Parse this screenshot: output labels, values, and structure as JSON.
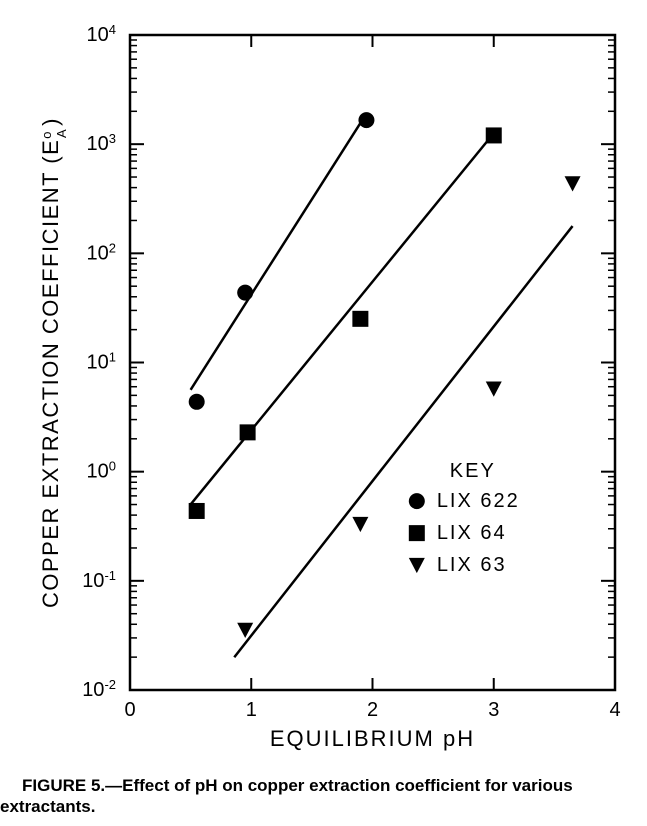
{
  "chart": {
    "type": "scatter-loglinear",
    "xlabel": "EQUILIBRIUM pH",
    "ylabel": "COPPER EXTRACTION COEFFICIENT (E",
    "ylabel_sup": "o",
    "ylabel_sub": "A",
    "ylabel_close": ")",
    "xlim": [
      0,
      4
    ],
    "ylim_exp": [
      -2,
      4
    ],
    "xticks": [
      0,
      1,
      2,
      3,
      4
    ],
    "yticks_exp": [
      -2,
      -1,
      0,
      1,
      2,
      3,
      4
    ],
    "yticklabels": [
      "10⁻²",
      "10⁻¹",
      "10⁰",
      "10¹",
      "10²",
      "10³",
      "10⁴"
    ],
    "axis_color": "#000000",
    "background_color": "#ffffff",
    "line_color": "#000000",
    "marker_color": "#000000",
    "label_fontsize": 22,
    "tick_fontsize": 20,
    "legend_fontsize": 20,
    "line_width": 2.5,
    "marker_size": 8,
    "legend_title": "KEY",
    "series": [
      {
        "name": "LIX 622",
        "marker": "circle",
        "points": [
          {
            "x": 0.55,
            "y_exp": 0.64
          },
          {
            "x": 0.95,
            "y_exp": 1.64
          },
          {
            "x": 1.95,
            "y_exp": 3.22
          }
        ],
        "fit_line": {
          "x1": 0.5,
          "y1_exp": 0.75,
          "x2": 1.95,
          "y2_exp": 3.28
        }
      },
      {
        "name": "LIX 64",
        "marker": "square",
        "points": [
          {
            "x": 0.55,
            "y_exp": -0.36
          },
          {
            "x": 0.97,
            "y_exp": 0.36
          },
          {
            "x": 1.9,
            "y_exp": 1.4
          },
          {
            "x": 3.0,
            "y_exp": 3.08
          }
        ],
        "fit_line": {
          "x1": 0.5,
          "y1_exp": -0.3,
          "x2": 3.0,
          "y2_exp": 3.1
        }
      },
      {
        "name": "LIX 63",
        "marker": "triangle-down",
        "points": [
          {
            "x": 0.95,
            "y_exp": -1.45
          },
          {
            "x": 1.9,
            "y_exp": -0.48
          },
          {
            "x": 3.0,
            "y_exp": 0.76
          },
          {
            "x": 3.65,
            "y_exp": 2.64
          }
        ],
        "fit_line": {
          "x1": 0.86,
          "y1_exp": -1.7,
          "x2": 3.65,
          "y2_exp": 2.25
        }
      }
    ]
  },
  "caption": "FIGURE 5.—Effect of pH on copper extraction coefficient for various extractants."
}
